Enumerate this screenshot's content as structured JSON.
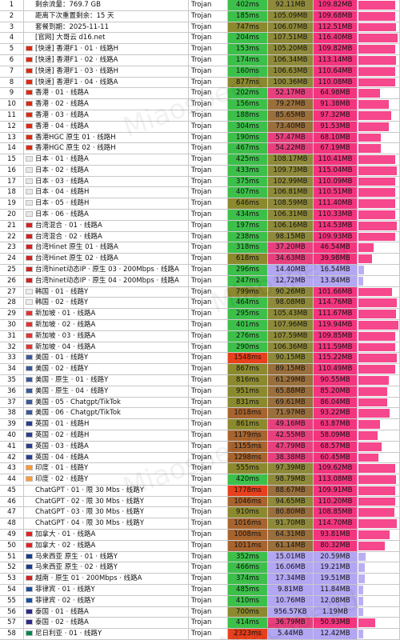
{
  "watermark": "Miaospeed",
  "rows": [
    {
      "index": 1,
      "name": "剩余流量：769.7 GB",
      "protocol": "Trojan",
      "latency": "402ms",
      "avg": "92.11MB",
      "max": "109.82MB",
      "flag": null
    },
    {
      "index": 2,
      "name": "距离下次重置剩余：15 天",
      "protocol": "Trojan",
      "latency": "185ms",
      "avg": "105.09MB",
      "max": "109.68MB",
      "flag": null
    },
    {
      "index": 3,
      "name": "套餐到期：2025-11-11",
      "protocol": "Trojan",
      "latency": "747ms",
      "avg": "106.07MB",
      "max": "112.51MB",
      "flag": null
    },
    {
      "index": 4,
      "name": "[官网] 大哥云 d16.net",
      "protocol": "Trojan",
      "latency": "204ms",
      "avg": "107.51MB",
      "max": "116.40MB",
      "flag": null
    },
    {
      "index": 5,
      "name": "[快速] 香港F1 · 01 · 线路H",
      "protocol": "Trojan",
      "latency": "153ms",
      "avg": "105.20MB",
      "max": "109.82MB",
      "flag": "#de2910"
    },
    {
      "index": 6,
      "name": "[快速] 香港F1 · 02 · 线路A",
      "protocol": "Trojan",
      "latency": "174ms",
      "avg": "106.34MB",
      "max": "113.14MB",
      "flag": "#de2910"
    },
    {
      "index": 7,
      "name": "[快速] 香港F1 · 03 · 线路H",
      "protocol": "Trojan",
      "latency": "160ms",
      "avg": "106.63MB",
      "max": "110.64MB",
      "flag": "#de2910"
    },
    {
      "index": 8,
      "name": "[快速] 香港F1 · 04 · 线路A",
      "protocol": "Trojan",
      "latency": "877ms",
      "avg": "100.36MB",
      "max": "110.08MB",
      "flag": "#de2910"
    },
    {
      "index": 9,
      "name": "香港 · 01 · 线路A",
      "protocol": "Trojan",
      "latency": "202ms",
      "avg": "52.17MB",
      "max": "64.98MB",
      "flag": "#de2910"
    },
    {
      "index": 10,
      "name": "香港 · 02 · 线路A",
      "protocol": "Trojan",
      "latency": "156ms",
      "avg": "79.27MB",
      "max": "91.38MB",
      "flag": "#de2910"
    },
    {
      "index": 11,
      "name": "香港 · 03 · 线路A",
      "protocol": "Trojan",
      "latency": "188ms",
      "avg": "85.65MB",
      "max": "97.32MB",
      "flag": "#de2910"
    },
    {
      "index": 12,
      "name": "香港 · 04 · 线路A",
      "protocol": "Trojan",
      "latency": "304ms",
      "avg": "73.40MB",
      "max": "91.53MB",
      "flag": "#de2910"
    },
    {
      "index": 13,
      "name": "香港HGC 原生 01 · 线路H",
      "protocol": "Trojan",
      "latency": "190ms",
      "avg": "57.47MB",
      "max": "68.10MB",
      "flag": "#de2910"
    },
    {
      "index": 14,
      "name": "香港HGC 原生 02 · 线路H",
      "protocol": "Trojan",
      "latency": "467ms",
      "avg": "54.22MB",
      "max": "67.19MB",
      "flag": "#de2910"
    },
    {
      "index": 15,
      "name": "日本 · 01 · 线路A",
      "protocol": "Trojan",
      "latency": "425ms",
      "avg": "108.17MB",
      "max": "110.41MB",
      "flag": "#e8e8e8"
    },
    {
      "index": 16,
      "name": "日本 · 02 · 线路A",
      "protocol": "Trojan",
      "latency": "433ms",
      "avg": "109.73MB",
      "max": "115.04MB",
      "flag": "#e8e8e8"
    },
    {
      "index": 17,
      "name": "日本 · 03 · 线路A",
      "protocol": "Trojan",
      "latency": "375ms",
      "avg": "102.99MB",
      "max": "110.09MB",
      "flag": "#e8e8e8"
    },
    {
      "index": 18,
      "name": "日本 · 04 · 线路H",
      "protocol": "Trojan",
      "latency": "407ms",
      "avg": "106.81MB",
      "max": "110.51MB",
      "flag": "#e8e8e8"
    },
    {
      "index": 19,
      "name": "日本 · 05 · 线路H",
      "protocol": "Trojan",
      "latency": "646ms",
      "avg": "108.59MB",
      "max": "111.40MB",
      "flag": "#e8e8e8"
    },
    {
      "index": 20,
      "name": "日本 · 06 · 线路A",
      "protocol": "Trojan",
      "latency": "434ms",
      "avg": "106.31MB",
      "max": "110.33MB",
      "flag": "#e8e8e8"
    },
    {
      "index": 21,
      "name": "台湾混合 · 01 · 线路A",
      "protocol": "Trojan",
      "latency": "197ms",
      "avg": "106.16MB",
      "max": "114.53MB",
      "flag": "#d22222"
    },
    {
      "index": 22,
      "name": "台湾混合 · 02 · 线路A",
      "protocol": "Trojan",
      "latency": "238ms",
      "avg": "98.15MB",
      "max": "109.93MB",
      "flag": "#d22222"
    },
    {
      "index": 23,
      "name": "台湾Hinet 原生 01 · 线路A",
      "protocol": "Trojan",
      "latency": "318ms",
      "avg": "37.20MB",
      "max": "46.54MB",
      "flag": "#d22222"
    },
    {
      "index": 24,
      "name": "台湾Hinet 原生 02 · 线路A",
      "protocol": "Trojan",
      "latency": "618ms",
      "avg": "34.63MB",
      "max": "39.98MB",
      "flag": "#d22222"
    },
    {
      "index": 25,
      "name": "台湾hinet动态IP · 原生 03 · 200Mbps · 线路A",
      "protocol": "Trojan",
      "latency": "296ms",
      "avg": "14.40MB",
      "max": "16.54MB",
      "flag": "#d22222"
    },
    {
      "index": 26,
      "name": "台湾hinet动态IP · 原生 04 · 200Mbps · 线路A",
      "protocol": "Trojan",
      "latency": "247ms",
      "avg": "12.72MB",
      "max": "13.84MB",
      "flag": "#d22222"
    },
    {
      "index": 27,
      "name": "韩国 · 01 · 线路Y",
      "protocol": "Trojan",
      "latency": "799ms",
      "avg": "90.26MB",
      "max": "101.66MB",
      "flag": "#eeeeee"
    },
    {
      "index": 28,
      "name": "韩国 · 02 · 线路Y",
      "protocol": "Trojan",
      "latency": "464ms",
      "avg": "98.08MB",
      "max": "114.76MB",
      "flag": "#eeeeee"
    },
    {
      "index": 29,
      "name": "新加坡 · 01 · 线路A",
      "protocol": "Trojan",
      "latency": "295ms",
      "avg": "105.43MB",
      "max": "111.67MB",
      "flag": "#e33333"
    },
    {
      "index": 30,
      "name": "新加坡 · 02 · 线路A",
      "protocol": "Trojan",
      "latency": "401ms",
      "avg": "107.96MB",
      "max": "119.94MB",
      "flag": "#e33333"
    },
    {
      "index": 31,
      "name": "新加坡 · 03 · 线路A",
      "protocol": "Trojan",
      "latency": "276ms",
      "avg": "107.59MB",
      "max": "109.85MB",
      "flag": "#e33333"
    },
    {
      "index": 32,
      "name": "新加坡 · 04 · 线路A",
      "protocol": "Trojan",
      "latency": "290ms",
      "avg": "106.36MB",
      "max": "111.59MB",
      "flag": "#e33333"
    },
    {
      "index": 33,
      "name": "美国 · 01 · 线路Y",
      "protocol": "Trojan",
      "latency": "1548ms",
      "avg": "90.15MB",
      "max": "115.22MB",
      "flag": "#3b5998"
    },
    {
      "index": 34,
      "name": "美国 · 02 · 线路Y",
      "protocol": "Trojan",
      "latency": "867ms",
      "avg": "89.15MB",
      "max": "110.49MB",
      "flag": "#3b5998"
    },
    {
      "index": 35,
      "name": "美国 · 原生 · 01 · 线路Y",
      "protocol": "Trojan",
      "latency": "816ms",
      "avg": "61.29MB",
      "max": "90.55MB",
      "flag": "#3b5998"
    },
    {
      "index": 36,
      "name": "美国 · 原生 · 04 · 线路Y",
      "protocol": "Trojan",
      "latency": "951ms",
      "avg": "65.88MB",
      "max": "85.20MB",
      "flag": "#3b5998"
    },
    {
      "index": 37,
      "name": "美国 · 05 · Chatgpt/TikTok",
      "protocol": "Trojan",
      "latency": "831ms",
      "avg": "69.61MB",
      "max": "86.04MB",
      "flag": "#3b5998"
    },
    {
      "index": 38,
      "name": "美国 · 06 · Chatgpt/TikTok",
      "protocol": "Trojan",
      "latency": "1018ms",
      "avg": "71.97MB",
      "max": "93.22MB",
      "flag": "#3b5998"
    },
    {
      "index": 39,
      "name": "英国 · 01 · 线路H",
      "protocol": "Trojan",
      "latency": "861ms",
      "avg": "49.16MB",
      "max": "63.87MB",
      "flag": "#2a3d8f"
    },
    {
      "index": 40,
      "name": "英国 · 02 · 线路H",
      "protocol": "Trojan",
      "latency": "1179ms",
      "avg": "42.55MB",
      "max": "58.09MB",
      "flag": "#2a3d8f"
    },
    {
      "index": 41,
      "name": "英国 · 03 · 线路A",
      "protocol": "Trojan",
      "latency": "1155ms",
      "avg": "47.79MB",
      "max": "68.57MB",
      "flag": "#2a3d8f"
    },
    {
      "index": 42,
      "name": "英国 · 04 · 线路A",
      "protocol": "Trojan",
      "latency": "1298ms",
      "avg": "38.38MB",
      "max": "60.45MB",
      "flag": "#2a3d8f"
    },
    {
      "index": 43,
      "name": "印度 · 01 · 线路Y",
      "protocol": "Trojan",
      "latency": "555ms",
      "avg": "97.39MB",
      "max": "109.62MB",
      "flag": "#ff9933"
    },
    {
      "index": 44,
      "name": "印度 · 02 · 线路Y",
      "protocol": "Trojan",
      "latency": "420ms",
      "avg": "98.79MB",
      "max": "113.08MB",
      "flag": "#ff9933"
    },
    {
      "index": 45,
      "name": "ChatGPT · 01 · 限 30 Mbs · 线路Y",
      "protocol": "Trojan",
      "latency": "1778ms",
      "avg": "88.67MB",
      "max": "109.91MB",
      "flag": null
    },
    {
      "index": 46,
      "name": "ChatGPT · 02 · 限 30 Mbs · 线路Y",
      "protocol": "Trojan",
      "latency": "1046ms",
      "avg": "94.65MB",
      "max": "110.20MB",
      "flag": null
    },
    {
      "index": 47,
      "name": "ChatGPT · 03 · 限 30 Mbs · 线路Y",
      "protocol": "Trojan",
      "latency": "910ms",
      "avg": "80.80MB",
      "max": "108.85MB",
      "flag": null
    },
    {
      "index": 48,
      "name": "ChatGPT · 04 · 限 30 Mbs · 线路Y",
      "protocol": "Trojan",
      "latency": "1016ms",
      "avg": "91.70MB",
      "max": "114.70MB",
      "flag": null
    },
    {
      "index": 49,
      "name": "加拿大 · 01 · 线路A",
      "protocol": "Trojan",
      "latency": "1008ms",
      "avg": "64.31MB",
      "max": "93.81MB",
      "flag": "#e22222"
    },
    {
      "index": 50,
      "name": "加拿大 · 02 · 线路A",
      "protocol": "Trojan",
      "latency": "1011ms",
      "avg": "61.14MB",
      "max": "80.32MB",
      "flag": "#e22222"
    },
    {
      "index": 51,
      "name": "马来西亚 原生 · 01 · 线路Y",
      "protocol": "Trojan",
      "latency": "352ms",
      "avg": "15.01MB",
      "max": "20.59MB",
      "flag": "#1a3c8c"
    },
    {
      "index": 52,
      "name": "马来西亚 原生 · 02 · 线路Y",
      "protocol": "Trojan",
      "latency": "466ms",
      "avg": "16.06MB",
      "max": "19.21MB",
      "flag": "#1a3c8c"
    },
    {
      "index": 53,
      "name": "越南 · 原生 01 · 200Mbps · 线路A",
      "protocol": "Trojan",
      "latency": "374ms",
      "avg": "17.34MB",
      "max": "19.51MB",
      "flag": "#d22222"
    },
    {
      "index": 54,
      "name": "菲律宾 · 01 · 线路Y",
      "protocol": "Trojan",
      "latency": "485ms",
      "avg": "9.81MB",
      "max": "11.84MB",
      "flag": "#1a4fa0"
    },
    {
      "index": 55,
      "name": "菲律宾 · 02 · 线路Y",
      "protocol": "Trojan",
      "latency": "410ms",
      "avg": "10.76MB",
      "max": "12.08MB",
      "flag": "#1a4fa0"
    },
    {
      "index": 56,
      "name": "泰国 · 01 · 线路A",
      "protocol": "Trojan",
      "latency": "700ms",
      "avg": "956.57KB",
      "max": "1.19MB",
      "flag": "#2d2a8a"
    },
    {
      "index": 57,
      "name": "泰国 · 02 · 线路A",
      "protocol": "Trojan",
      "latency": "414ms",
      "avg": "36.79MB",
      "max": "50.93MB",
      "flag": "#2d2a8a"
    },
    {
      "index": 58,
      "name": "尼日利亚 · 01 · 线路Y",
      "protocol": "Trojan",
      "latency": "2323ms",
      "avg": "5.44MB",
      "max": "12.42MB",
      "flag": "#008751"
    }
  ]
}
